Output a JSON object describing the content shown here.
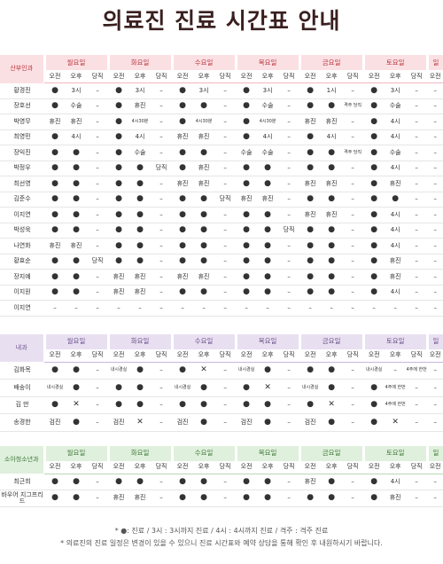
{
  "title": "의료진 진료 시간표 안내",
  "days": [
    "월요일",
    "화요일",
    "수요일",
    "목요일",
    "금요일",
    "토요일",
    "일"
  ],
  "slots": [
    "오전",
    "오후",
    "당직"
  ],
  "sunday_slots": [
    "오전"
  ],
  "sections": [
    {
      "department": "산부인과",
      "theme": "pink",
      "rows": [
        {
          "name": "황경진",
          "cells": [
            "●",
            "3시",
            "–",
            "●",
            "3시",
            "–",
            "●",
            "3시",
            "–",
            "●",
            "3시",
            "–",
            "●",
            "1시",
            "–",
            "●",
            "3시",
            "–",
            "–"
          ]
        },
        {
          "name": "장호선",
          "cells": [
            "●",
            "수술",
            "–",
            "●",
            "휴진",
            "–",
            "●",
            "●",
            "–",
            "●",
            "수술",
            "–",
            "●",
            "●",
            "격주 당직",
            "●",
            "수술",
            "–",
            "–"
          ]
        },
        {
          "name": "박영무",
          "cells": [
            "휴진",
            "휴진",
            "–",
            "●",
            "4시30분",
            "–",
            "●",
            "4시30분",
            "–",
            "●",
            "4시30분",
            "–",
            "휴진",
            "휴진",
            "–",
            "●",
            "4시",
            "–",
            "–"
          ]
        },
        {
          "name": "최영민",
          "cells": [
            "●",
            "4시",
            "–",
            "●",
            "4시",
            "–",
            "휴진",
            "휴진",
            "–",
            "●",
            "4시",
            "–",
            "●",
            "4시",
            "–",
            "●",
            "4시",
            "–",
            "–"
          ]
        },
        {
          "name": "장익진",
          "cells": [
            "●",
            "●",
            "–",
            "●",
            "수술",
            "–",
            "●",
            "●",
            "–",
            "수술",
            "수술",
            "–",
            "●",
            "●",
            "격주 당직",
            "●",
            "수술",
            "–",
            "–"
          ]
        },
        {
          "name": "박정우",
          "cells": [
            "●",
            "●",
            "–",
            "●",
            "●",
            "당직",
            "●",
            "휴진",
            "–",
            "●",
            "●",
            "–",
            "●",
            "●",
            "–",
            "●",
            "4시",
            "–",
            "–"
          ]
        },
        {
          "name": "최선영",
          "cells": [
            "●",
            "●",
            "–",
            "●",
            "●",
            "–",
            "휴진",
            "휴진",
            "–",
            "●",
            "●",
            "–",
            "휴진",
            "휴진",
            "–",
            "●",
            "휴진",
            "–",
            "–"
          ]
        },
        {
          "name": "김준수",
          "cells": [
            "●",
            "●",
            "–",
            "●",
            "●",
            "–",
            "●",
            "●",
            "당직",
            "휴진",
            "휴진",
            "–",
            "●",
            "●",
            "–",
            "●",
            "●",
            "–",
            "–"
          ]
        },
        {
          "name": "이지연",
          "cells": [
            "●",
            "●",
            "–",
            "●",
            "●",
            "–",
            "●",
            "●",
            "–",
            "●",
            "●",
            "–",
            "휴진",
            "휴진",
            "–",
            "●",
            "4시",
            "–",
            "–"
          ]
        },
        {
          "name": "박성욱",
          "cells": [
            "●",
            "●",
            "–",
            "●",
            "●",
            "–",
            "●",
            "●",
            "–",
            "●",
            "●",
            "당직",
            "●",
            "●",
            "–",
            "●",
            "4시",
            "–",
            "–"
          ]
        },
        {
          "name": "나연화",
          "cells": [
            "휴진",
            "휴진",
            "–",
            "●",
            "●",
            "–",
            "●",
            "●",
            "–",
            "●",
            "●",
            "–",
            "●",
            "●",
            "–",
            "●",
            "4시",
            "–",
            "–"
          ]
        },
        {
          "name": "황효순",
          "cells": [
            "●",
            "●",
            "당직",
            "●",
            "●",
            "–",
            "●",
            "●",
            "–",
            "●",
            "●",
            "–",
            "●",
            "●",
            "–",
            "●",
            "휴진",
            "–",
            "–"
          ]
        },
        {
          "name": "장지예",
          "cells": [
            "●",
            "●",
            "–",
            "휴진",
            "휴진",
            "–",
            "휴진",
            "휴진",
            "–",
            "●",
            "●",
            "–",
            "●",
            "●",
            "–",
            "●",
            "휴진",
            "–",
            "–"
          ]
        },
        {
          "name": "이지원",
          "cells": [
            "●",
            "●",
            "–",
            "휴진",
            "휴진",
            "–",
            "●",
            "●",
            "–",
            "●",
            "●",
            "–",
            "●",
            "●",
            "–",
            "●",
            "4시",
            "–",
            "–"
          ]
        },
        {
          "name": "이지연",
          "cells": [
            "–",
            "–",
            "–",
            "–",
            "–",
            "–",
            "–",
            "–",
            "–",
            "–",
            "–",
            "–",
            "–",
            "–",
            "–",
            "–",
            "–",
            "–",
            "–"
          ]
        }
      ]
    },
    {
      "department": "내과",
      "theme": "purple",
      "rows": [
        {
          "name": "김화목",
          "cells": [
            "●",
            "●",
            "–",
            "내시경실",
            "●",
            "–",
            "●",
            "✕",
            "–",
            "내시경실",
            "●",
            "–",
            "●",
            "●",
            "–",
            "내시경실",
            "–",
            "4주에 한번",
            "–"
          ]
        },
        {
          "name": "배송이",
          "cells": [
            "내시경실",
            "●",
            "–",
            "●",
            "●",
            "–",
            "내시경실",
            "●",
            "–",
            "●",
            "✕",
            "–",
            "내시경실",
            "●",
            "–",
            "●",
            "4주에 한번",
            "–",
            "–"
          ]
        },
        {
          "name": "김 만",
          "cells": [
            "●",
            "✕",
            "–",
            "●",
            "●",
            "–",
            "●",
            "●",
            "–",
            "●",
            "●",
            "–",
            "●",
            "✕",
            "–",
            "●",
            "4주에 한번",
            "–",
            "–"
          ]
        },
        {
          "name": "송경한",
          "cells": [
            "검진",
            "●",
            "–",
            "검진",
            "✕",
            "–",
            "검진",
            "●",
            "–",
            "검진",
            "●",
            "–",
            "검진",
            "●",
            "–",
            "●",
            "✕",
            "–",
            "–"
          ]
        }
      ]
    },
    {
      "department": "소아청소년과",
      "theme": "green",
      "rows": [
        {
          "name": "최근희",
          "cells": [
            "●",
            "●",
            "–",
            "●",
            "●",
            "–",
            "●",
            "●",
            "–",
            "●",
            "●",
            "–",
            "휴진",
            "●",
            "–",
            "●",
            "4시",
            "–",
            "–"
          ]
        },
        {
          "name": "바우어 지그프리드",
          "cells": [
            "●",
            "●",
            "–",
            "휴진",
            "휴진",
            "–",
            "●",
            "●",
            "–",
            "●",
            "●",
            "–",
            "●",
            "●",
            "–",
            "●",
            "휴진",
            "–",
            "–"
          ]
        }
      ]
    }
  ],
  "notes": [
    "* ●: 진료 / 3시 : 3시까지 진료 / 4시 : 4시까지 진료 / 격주 : 격주 진료",
    "* 의료진의 진료 일정은 변경이 있을 수 있으니 진료 시간표와 예약 상담을 통해 확인 후 내원하시기 바랍니다."
  ]
}
